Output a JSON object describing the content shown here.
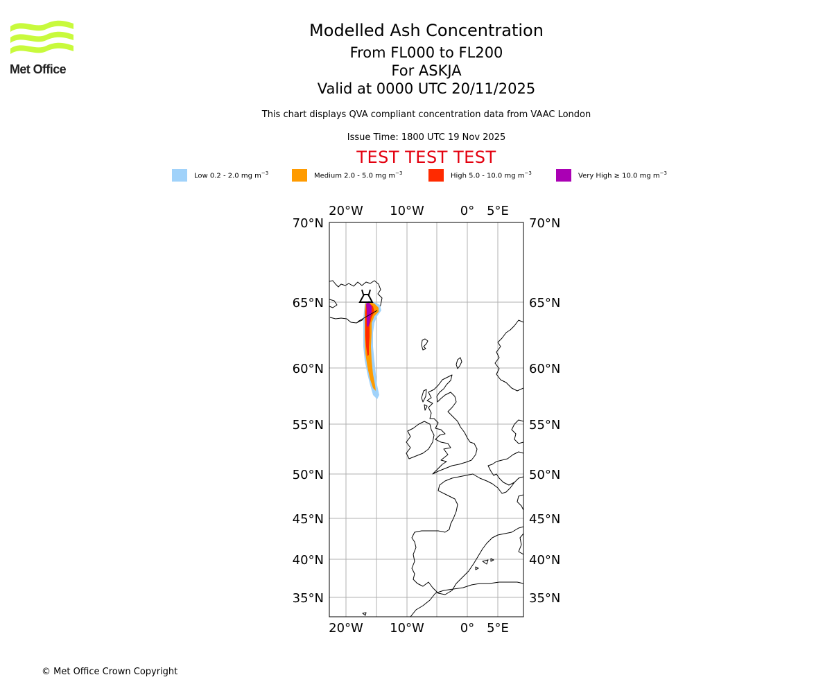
{
  "header": {
    "title": "Modelled Ash Concentration",
    "levels": "From FL000 to FL200",
    "volcano": "For ASKJA",
    "valid": "Valid at 0000 UTC 20/11/2025",
    "description": "This chart displays QVA compliant concentration data from VAAC London",
    "issue_time": "Issue Time: 1800 UTC 19 Nov 2025",
    "test_banner": "TEST TEST TEST"
  },
  "logo": {
    "text": "Met Office",
    "color": "#c8fa3c"
  },
  "legend": [
    {
      "label": "Low 0.2 - 2.0 mg m",
      "unit_exp": "−3",
      "color": "#a0d2fa"
    },
    {
      "label": "Medium 2.0 - 5.0 mg m",
      "unit_exp": "−3",
      "color": "#ff9b00"
    },
    {
      "label": "High 5.0 - 10.0 mg m",
      "unit_exp": "−3",
      "color": "#ff2a00"
    },
    {
      "label": "Very High  ≥  10.0 mg m",
      "unit_exp": "−3",
      "color": "#aa00b4"
    }
  ],
  "map": {
    "lon_ticks": [
      "20°W",
      "10°W",
      "0°",
      "5°E"
    ],
    "lat_ticks": [
      "70°N",
      "65°N",
      "60°N",
      "55°N",
      "50°N",
      "45°N",
      "40°N",
      "35°N"
    ],
    "lon_values": [
      -20,
      -10,
      0,
      5
    ],
    "lat_values": [
      70,
      65,
      60,
      55,
      50,
      45,
      40,
      35
    ],
    "extent": {
      "lon_min": -22.7,
      "lon_max": 9.3,
      "lat_min": 33,
      "lat_max": 70
    },
    "volcano_name": "ASKJA",
    "volcano_location": {
      "lon": -16.75,
      "lat": 65.03
    }
  },
  "footer": {
    "copyright": "© Met Office Crown Copyright"
  }
}
